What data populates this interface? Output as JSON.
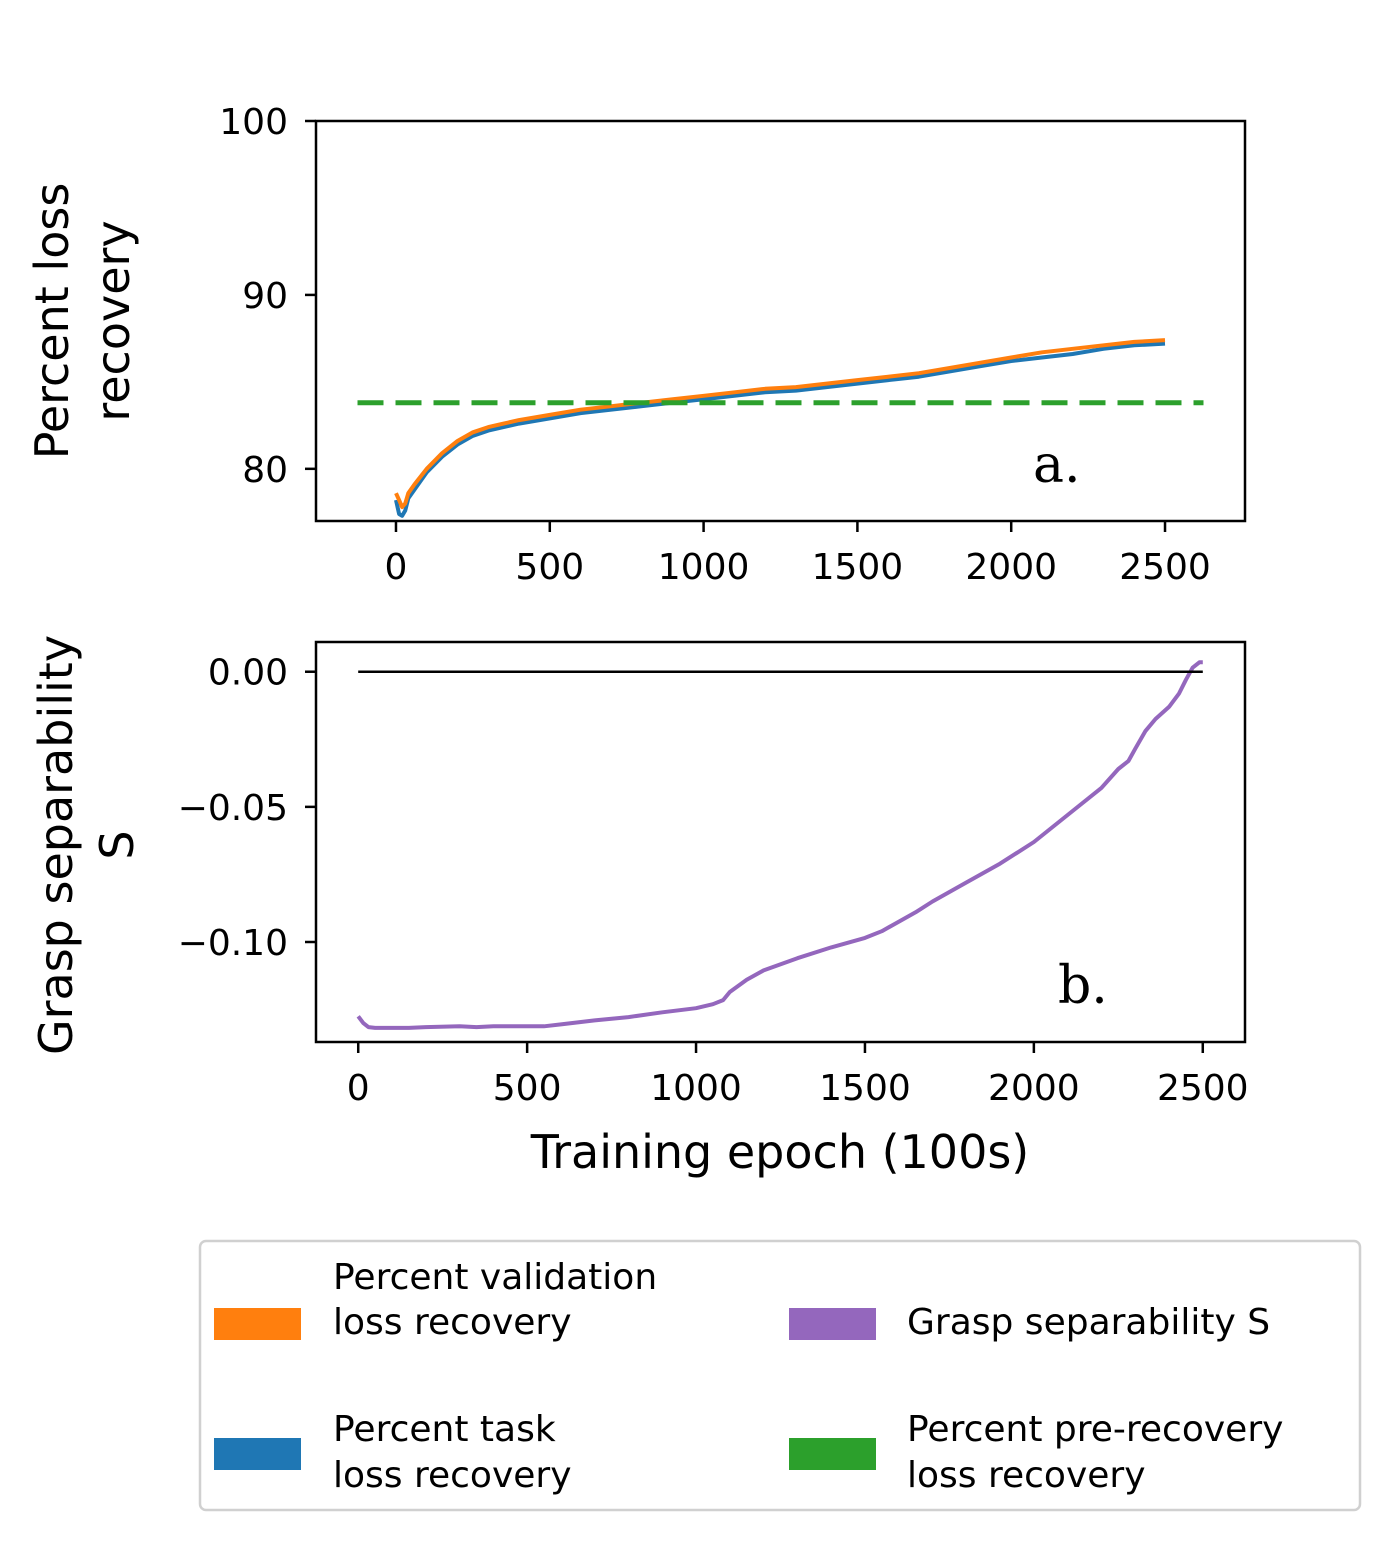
{
  "chart_data": [
    {
      "type": "line",
      "panel_label": "a.",
      "ylabel_lines": [
        "Percent loss",
        "recovery"
      ],
      "ylim": [
        77,
        100
      ],
      "xlim": [
        -260,
        2760
      ],
      "xticks": [
        0,
        500,
        1000,
        1500,
        2000,
        2500
      ],
      "xtick_labels": [
        "0",
        "500",
        "1000",
        "1500",
        "2000",
        "2500"
      ],
      "yticks": [
        80,
        90,
        100
      ],
      "ytick_labels": [
        "80",
        "90",
        "100"
      ],
      "series": [
        {
          "name": "Percent task loss recovery",
          "color": "#1f77b4",
          "x": [
            0,
            10,
            20,
            30,
            40,
            60,
            100,
            150,
            200,
            250,
            300,
            350,
            400,
            500,
            600,
            700,
            800,
            900,
            1000,
            1100,
            1200,
            1300,
            1400,
            1500,
            1600,
            1700,
            1800,
            1900,
            2000,
            2100,
            2200,
            2300,
            2400,
            2500
          ],
          "y": [
            78.2,
            77.4,
            77.3,
            77.6,
            78.3,
            78.8,
            79.8,
            80.7,
            81.4,
            81.9,
            82.2,
            82.4,
            82.6,
            82.9,
            83.2,
            83.4,
            83.6,
            83.8,
            84.0,
            84.2,
            84.4,
            84.5,
            84.7,
            84.9,
            85.1,
            85.3,
            85.6,
            85.9,
            86.2,
            86.4,
            86.6,
            86.9,
            87.1,
            87.2
          ]
        },
        {
          "name": "Percent validation loss recovery",
          "color": "#ff7f0e",
          "x": [
            0,
            10,
            20,
            30,
            40,
            60,
            100,
            150,
            200,
            250,
            300,
            350,
            400,
            500,
            600,
            700,
            800,
            900,
            1000,
            1100,
            1200,
            1300,
            1400,
            1500,
            1600,
            1700,
            1800,
            1900,
            2000,
            2100,
            2200,
            2300,
            2400,
            2500
          ],
          "y": [
            78.6,
            78.2,
            77.8,
            78.0,
            78.6,
            79.1,
            80.0,
            80.9,
            81.6,
            82.1,
            82.4,
            82.6,
            82.8,
            83.1,
            83.4,
            83.6,
            83.8,
            84.0,
            84.2,
            84.4,
            84.6,
            84.7,
            84.9,
            85.1,
            85.3,
            85.5,
            85.8,
            86.1,
            86.4,
            86.7,
            86.9,
            87.1,
            87.3,
            87.4
          ]
        },
        {
          "name": "Percent pre-recovery loss recovery",
          "color": "#2ca02c",
          "dashed": true,
          "x": [
            -125,
            2625
          ],
          "y": [
            83.8,
            83.8
          ]
        }
      ]
    },
    {
      "type": "line",
      "panel_label": "b.",
      "ylabel_lines": [
        "Grasp separability",
        "S"
      ],
      "xlabel": "Training epoch (100s)",
      "ylim": [
        -0.137,
        0.011
      ],
      "xlim": [
        -125,
        2625
      ],
      "xticks": [
        0,
        500,
        1000,
        1500,
        2000,
        2500
      ],
      "xtick_labels": [
        "0",
        "500",
        "1000",
        "1500",
        "2000",
        "2500"
      ],
      "yticks": [
        0.0,
        -0.05,
        -0.1
      ],
      "ytick_labels": [
        "0.00",
        "−0.05",
        "−0.10"
      ],
      "series": [
        {
          "name": "Grasp separability S",
          "color": "#9467bd",
          "x": [
            0,
            15,
            30,
            50,
            100,
            150,
            200,
            300,
            350,
            400,
            500,
            550,
            600,
            700,
            800,
            900,
            1000,
            1050,
            1080,
            1100,
            1150,
            1200,
            1300,
            1400,
            1500,
            1550,
            1600,
            1650,
            1700,
            1800,
            1900,
            2000,
            2100,
            2200,
            2250,
            2280,
            2300,
            2330,
            2360,
            2400,
            2430,
            2450,
            2470,
            2490,
            2500
          ],
          "y": [
            -0.1275,
            -0.13,
            -0.1315,
            -0.1318,
            -0.1318,
            -0.1318,
            -0.1315,
            -0.1312,
            -0.1315,
            -0.1312,
            -0.1312,
            -0.1312,
            -0.1305,
            -0.129,
            -0.1278,
            -0.126,
            -0.1245,
            -0.123,
            -0.1215,
            -0.1185,
            -0.114,
            -0.1105,
            -0.106,
            -0.102,
            -0.0985,
            -0.096,
            -0.0925,
            -0.089,
            -0.085,
            -0.078,
            -0.071,
            -0.063,
            -0.053,
            -0.043,
            -0.036,
            -0.033,
            -0.0285,
            -0.022,
            -0.0175,
            -0.013,
            -0.008,
            -0.003,
            0.0015,
            0.0035,
            0.0035
          ]
        },
        {
          "name": "zero reference",
          "color": "#000000",
          "x": [
            0,
            2500
          ],
          "y": [
            0,
            0
          ]
        }
      ]
    }
  ],
  "legend": {
    "items": [
      {
        "lines": [
          "Percent validation",
          "loss recovery"
        ],
        "color": "#ff7f0e"
      },
      {
        "lines": [
          "Grasp separability S"
        ],
        "color": "#9467bd"
      },
      {
        "lines": [
          "Percent task",
          "loss recovery"
        ],
        "color": "#1f77b4"
      },
      {
        "lines": [
          "Percent pre-recovery",
          "loss recovery"
        ],
        "color": "#2ca02c"
      }
    ]
  }
}
